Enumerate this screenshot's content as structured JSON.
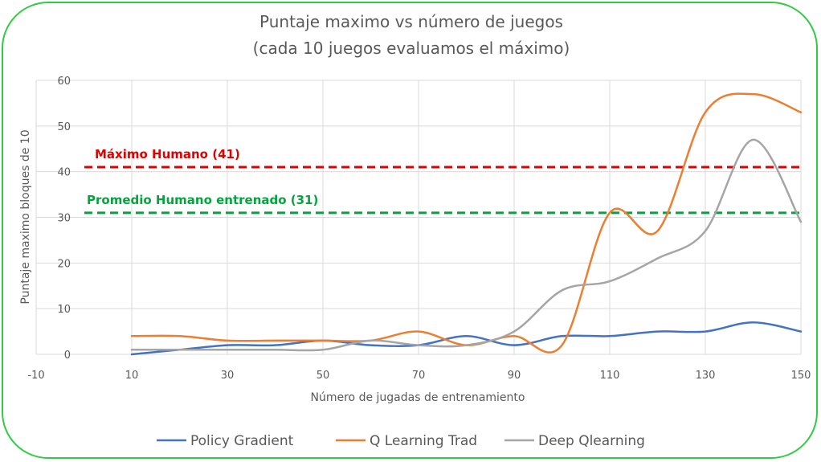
{
  "chart_data": {
    "type": "line",
    "title_line1": "Puntaje maximo vs número de juegos",
    "title_line2": "(cada 10 juegos evaluamos el máximo)",
    "xlabel": "Número de jugadas de entrenamiento",
    "ylabel": "Puntaje maximo bloques de 10",
    "xlim": [
      -10,
      150
    ],
    "ylim": [
      0,
      60
    ],
    "x_ticks": [
      "-10",
      "10",
      "30",
      "50",
      "70",
      "90",
      "110",
      "130",
      "150"
    ],
    "y_ticks": [
      "0",
      "10",
      "20",
      "30",
      "40",
      "50",
      "60"
    ],
    "x_tick_values": [
      -10,
      10,
      30,
      50,
      70,
      90,
      110,
      130,
      150
    ],
    "y_tick_values": [
      0,
      10,
      20,
      30,
      40,
      50,
      60
    ],
    "grid": true,
    "legend_position": "bottom",
    "x": [
      10,
      20,
      30,
      40,
      50,
      60,
      70,
      80,
      90,
      100,
      110,
      120,
      130,
      140,
      150
    ],
    "series": [
      {
        "name": "Policy Gradient",
        "color": "#4472c4",
        "values": [
          0,
          1,
          2,
          2,
          3,
          2,
          2,
          4,
          2,
          4,
          4,
          5,
          5,
          7,
          5
        ]
      },
      {
        "name": "Q Learning Trad",
        "color": "#ed7d31",
        "values": [
          4,
          4,
          3,
          3,
          3,
          3,
          5,
          2,
          4,
          2,
          31,
          27,
          53,
          57,
          53
        ]
      },
      {
        "name": "Deep Qlearning",
        "color": "#a5a5a5",
        "values": [
          1,
          1,
          1,
          1,
          1,
          3,
          2,
          2,
          5,
          14,
          16,
          21,
          27,
          47,
          29
        ]
      }
    ],
    "reference_lines": [
      {
        "label": "Máximo Humano (41)",
        "value": 41,
        "color": "#e00000"
      },
      {
        "label": "Promedio Humano entrenado (31)",
        "value": 31,
        "color": "#00a63c"
      }
    ]
  }
}
